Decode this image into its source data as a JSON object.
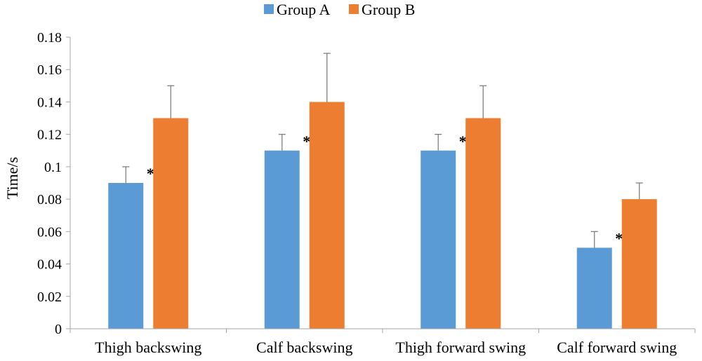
{
  "chart_data": {
    "type": "bar",
    "title": "",
    "xlabel": "",
    "ylabel": "Time/s",
    "ylim": [
      0,
      0.18
    ],
    "yticks": [
      0,
      0.02,
      0.04,
      0.06,
      0.08,
      0.1,
      0.12,
      0.14,
      0.16,
      0.18
    ],
    "ytick_labels": [
      "0",
      "0.02",
      "0.04",
      "0.06",
      "0.08",
      "0.1",
      "0.12",
      "0.14",
      "0.16",
      "0.18"
    ],
    "grid": false,
    "legend_position": "top-center",
    "categories": [
      "Thigh backswing",
      "Calf backswing",
      "Thigh forward swing",
      "Calf forward swing"
    ],
    "series": [
      {
        "name": "Group A",
        "color": "#5b9bd5",
        "values": [
          0.09,
          0.11,
          0.11,
          0.05
        ],
        "error": [
          0.01,
          0.01,
          0.01,
          0.01
        ]
      },
      {
        "name": "Group B",
        "color": "#ed7d31",
        "values": [
          0.13,
          0.14,
          0.13,
          0.08
        ],
        "error": [
          0.02,
          0.03,
          0.02,
          0.01
        ]
      }
    ],
    "annotations": [
      "*",
      "*",
      "*",
      "*"
    ]
  }
}
